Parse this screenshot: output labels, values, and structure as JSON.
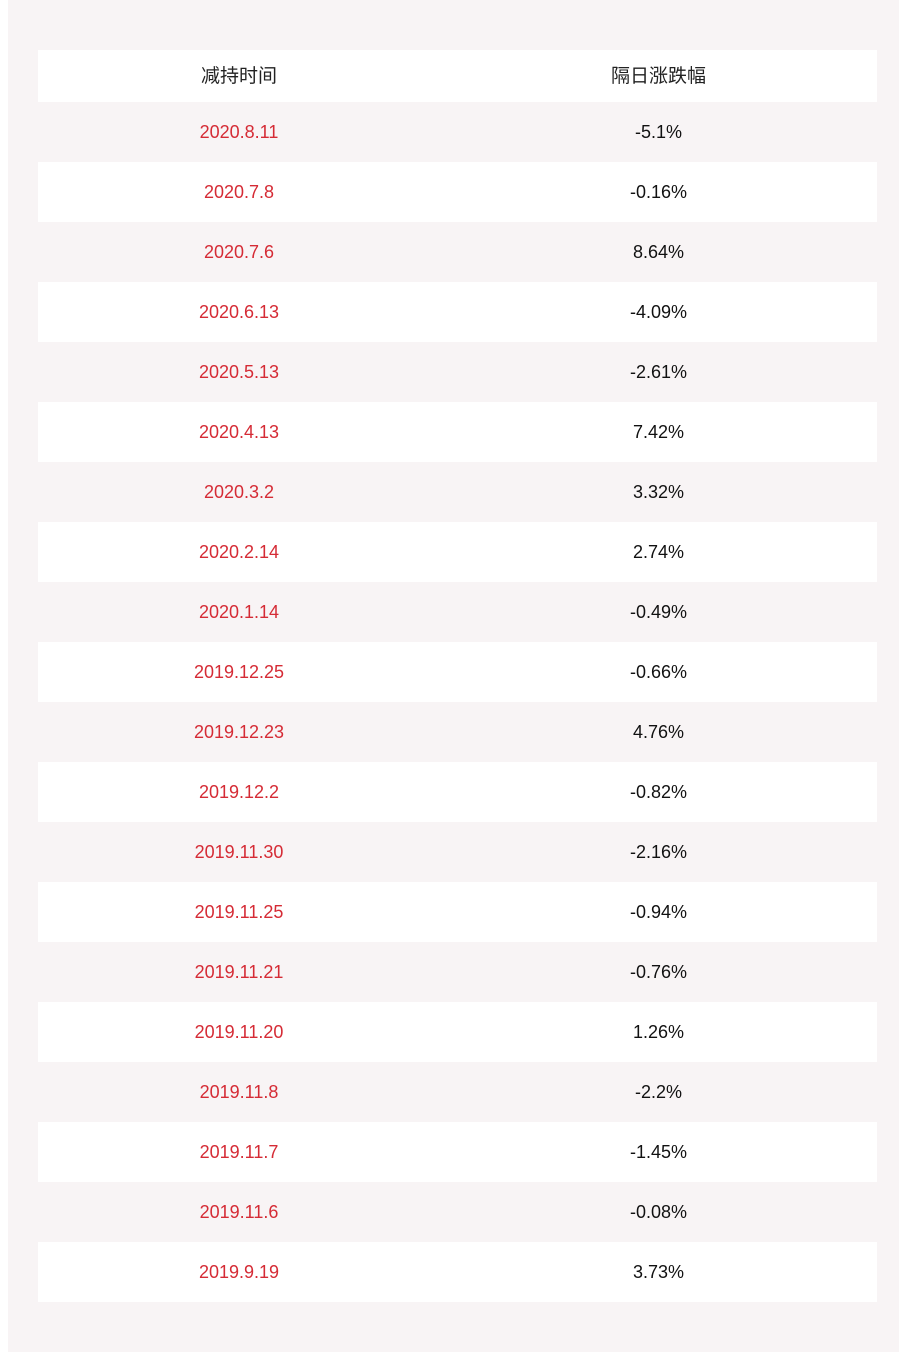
{
  "table": {
    "headers": [
      "减持时间",
      "隔日涨跌幅"
    ],
    "rows": [
      {
        "date": "2020.8.11",
        "change": "-5.1%"
      },
      {
        "date": "2020.7.8",
        "change": "-0.16%"
      },
      {
        "date": "2020.7.6",
        "change": "8.64%"
      },
      {
        "date": "2020.6.13",
        "change": "-4.09%"
      },
      {
        "date": "2020.5.13",
        "change": "-2.61%"
      },
      {
        "date": "2020.4.13",
        "change": "7.42%"
      },
      {
        "date": "2020.3.2",
        "change": "3.32%"
      },
      {
        "date": "2020.2.14",
        "change": "2.74%"
      },
      {
        "date": "2020.1.14",
        "change": "-0.49%"
      },
      {
        "date": "2019.12.25",
        "change": "-0.66%"
      },
      {
        "date": "2019.12.23",
        "change": "4.76%"
      },
      {
        "date": "2019.12.2",
        "change": "-0.82%"
      },
      {
        "date": "2019.11.30",
        "change": "-2.16%"
      },
      {
        "date": "2019.11.25",
        "change": "-0.94%"
      },
      {
        "date": "2019.11.21",
        "change": "-0.76%"
      },
      {
        "date": "2019.11.20",
        "change": "1.26%"
      },
      {
        "date": "2019.11.8",
        "change": "-2.2%"
      },
      {
        "date": "2019.11.7",
        "change": "-1.45%"
      },
      {
        "date": "2019.11.6",
        "change": "-0.08%"
      },
      {
        "date": "2019.9.19",
        "change": "3.73%"
      }
    ]
  },
  "colors": {
    "background": "#f8f4f5",
    "row_white": "#ffffff",
    "date_text": "#d52b35",
    "value_text": "#111111"
  }
}
